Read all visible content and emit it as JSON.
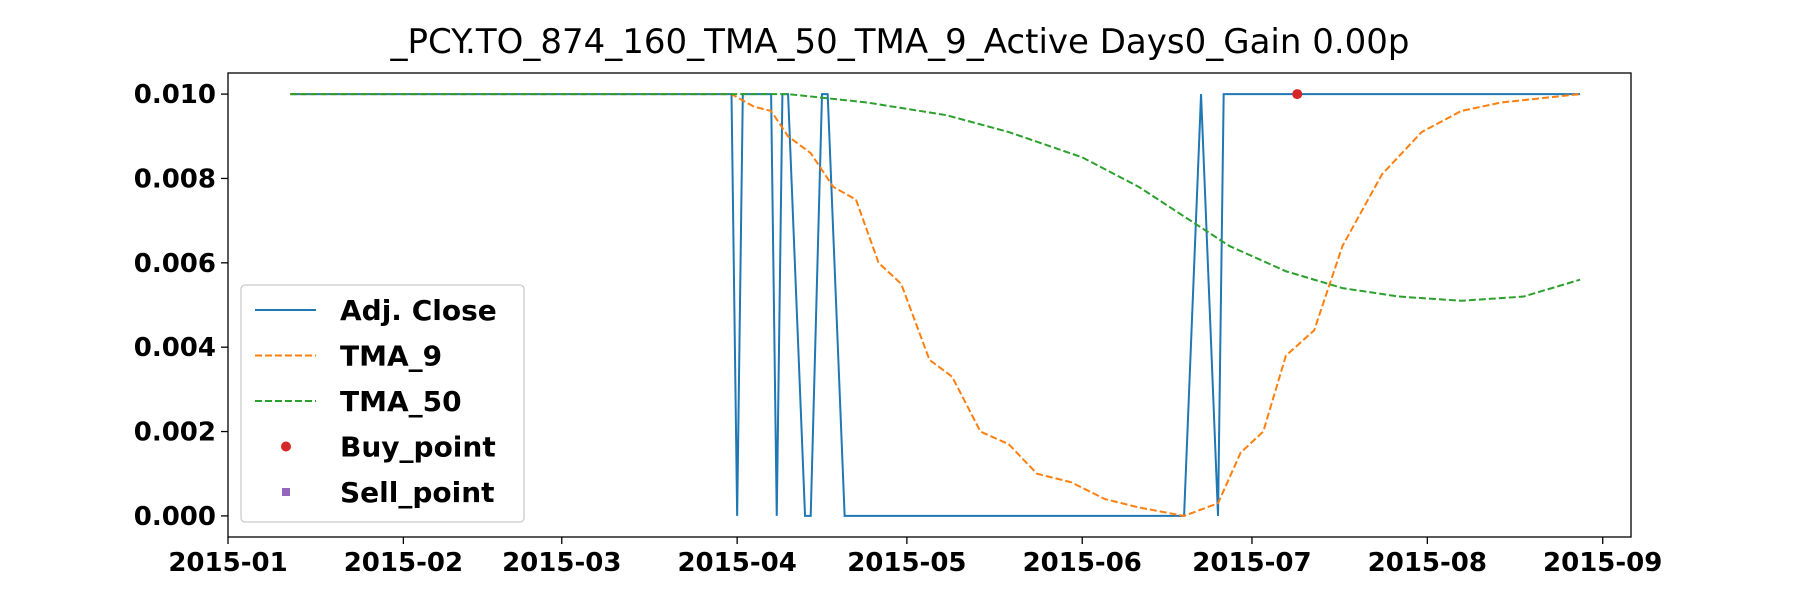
{
  "chart_data": {
    "type": "line",
    "title": "_PCY.TO_874_160_TMA_50_TMA_9_Active Days0_Gain   0.00p",
    "xlabel": "",
    "ylabel": "",
    "ylim": [
      -0.0005,
      0.0105
    ],
    "xlim": [
      "2015-01-01",
      "2015-09-06"
    ],
    "x_ticks": [
      "2015-01",
      "2015-02",
      "2015-03",
      "2015-04",
      "2015-05",
      "2015-06",
      "2015-07",
      "2015-08",
      "2015-09"
    ],
    "y_ticks": [
      0.0,
      0.002,
      0.004,
      0.006,
      0.008,
      0.01
    ],
    "y_tick_labels": [
      "0.000",
      "0.002",
      "0.004",
      "0.006",
      "0.008",
      "0.010"
    ],
    "grid": false,
    "legend_position": "lower-left",
    "series": [
      {
        "name": "Adj. Close",
        "color": "#1f77b4",
        "style": "solid",
        "x": [
          "2015-01-12",
          "2015-03-31",
          "2015-04-01",
          "2015-04-02",
          "2015-04-07",
          "2015-04-08",
          "2015-04-09",
          "2015-04-10",
          "2015-04-13",
          "2015-04-14",
          "2015-04-16",
          "2015-04-17",
          "2015-04-20",
          "2015-06-19",
          "2015-06-22",
          "2015-06-25",
          "2015-06-26",
          "2015-08-28"
        ],
        "y": [
          0.01,
          0.01,
          0.0,
          0.01,
          0.01,
          0.0,
          0.01,
          0.01,
          0.0,
          0.0,
          0.01,
          0.01,
          0.0,
          0.0,
          0.01,
          0.0,
          0.01,
          0.01
        ]
      },
      {
        "name": "TMA_9",
        "color": "#ff7f0e",
        "style": "dashed",
        "x": [
          "2015-01-12",
          "2015-03-31",
          "2015-04-04",
          "2015-04-07",
          "2015-04-10",
          "2015-04-14",
          "2015-04-18",
          "2015-04-22",
          "2015-04-26",
          "2015-04-30",
          "2015-05-05",
          "2015-05-09",
          "2015-05-14",
          "2015-05-19",
          "2015-05-24",
          "2015-05-30",
          "2015-06-05",
          "2015-06-11",
          "2015-06-19",
          "2015-06-25",
          "2015-06-29",
          "2015-07-03",
          "2015-07-07",
          "2015-07-12",
          "2015-07-17",
          "2015-07-24",
          "2015-07-31",
          "2015-08-07",
          "2015-08-14",
          "2015-08-21",
          "2015-08-28"
        ],
        "y": [
          0.01,
          0.01,
          0.0097,
          0.0096,
          0.009,
          0.0086,
          0.0078,
          0.0075,
          0.006,
          0.0055,
          0.0037,
          0.0033,
          0.002,
          0.0017,
          0.001,
          0.0008,
          0.0004,
          0.0002,
          0.0,
          0.0003,
          0.0015,
          0.002,
          0.0038,
          0.0044,
          0.0064,
          0.0081,
          0.0091,
          0.0096,
          0.0098,
          0.0099,
          0.01
        ]
      },
      {
        "name": "TMA_50",
        "color": "#2ca02c",
        "style": "dashed",
        "x": [
          "2015-01-12",
          "2015-04-10",
          "2015-04-24",
          "2015-05-08",
          "2015-05-19",
          "2015-06-01",
          "2015-06-11",
          "2015-06-19",
          "2015-06-27",
          "2015-07-07",
          "2015-07-17",
          "2015-07-27",
          "2015-08-07",
          "2015-08-18",
          "2015-08-28"
        ],
        "y": [
          0.01,
          0.01,
          0.0098,
          0.0095,
          0.0091,
          0.0085,
          0.0078,
          0.0071,
          0.0064,
          0.0058,
          0.0054,
          0.0052,
          0.0051,
          0.0052,
          0.0056
        ]
      },
      {
        "name": "Buy_point",
        "color": "#d62728",
        "style": "marker-circle",
        "x": [
          "2015-07-09"
        ],
        "y": [
          0.01
        ]
      },
      {
        "name": "Sell_point",
        "color": "#9467bd",
        "style": "marker-square",
        "x": [],
        "y": []
      }
    ]
  }
}
